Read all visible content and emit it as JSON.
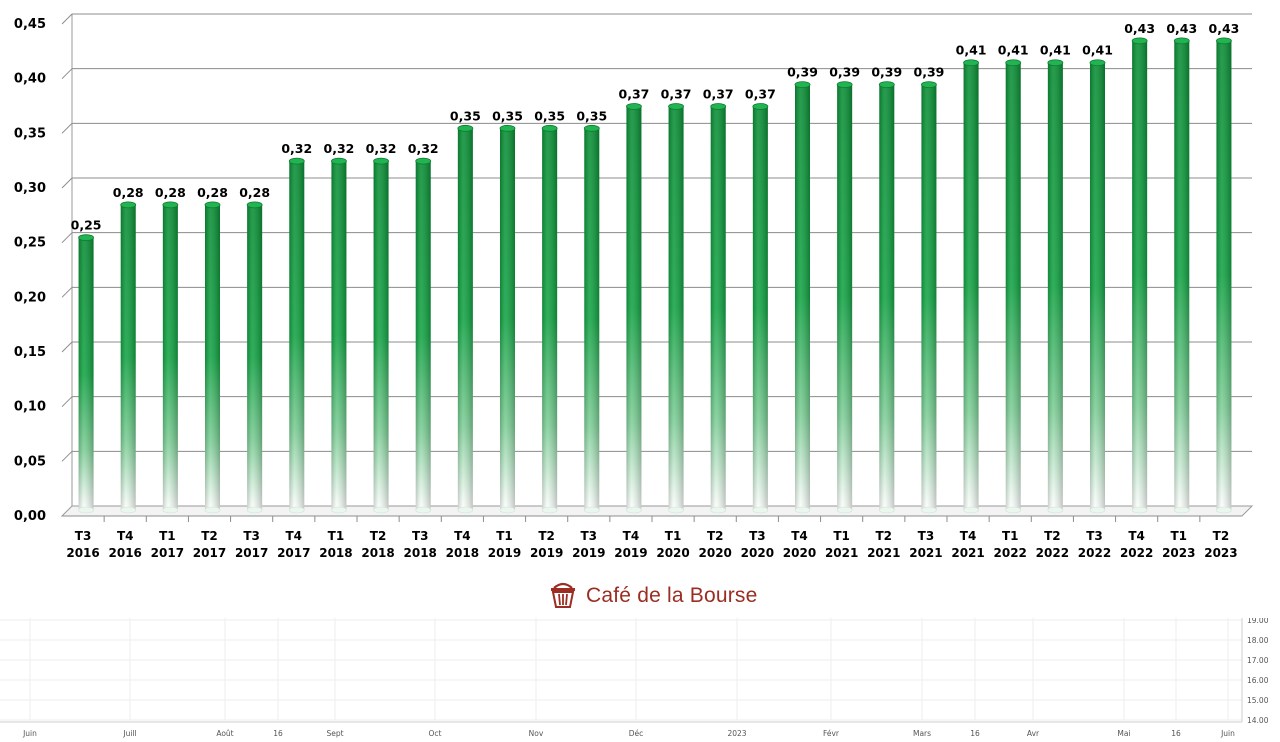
{
  "chart_data": {
    "type": "bar",
    "categories": [
      [
        "T3",
        "2016"
      ],
      [
        "T4",
        "2016"
      ],
      [
        "T1",
        "2017"
      ],
      [
        "T2",
        "2017"
      ],
      [
        "T3",
        "2017"
      ],
      [
        "T4",
        "2017"
      ],
      [
        "T1",
        "2018"
      ],
      [
        "T2",
        "2018"
      ],
      [
        "T3",
        "2018"
      ],
      [
        "T4",
        "2018"
      ],
      [
        "T1",
        "2019"
      ],
      [
        "T2",
        "2019"
      ],
      [
        "T3",
        "2019"
      ],
      [
        "T4",
        "2019"
      ],
      [
        "T1",
        "2020"
      ],
      [
        "T2",
        "2020"
      ],
      [
        "T3",
        "2020"
      ],
      [
        "T4",
        "2020"
      ],
      [
        "T1",
        "2021"
      ],
      [
        "T2",
        "2021"
      ],
      [
        "T3",
        "2021"
      ],
      [
        "T4",
        "2021"
      ],
      [
        "T1",
        "2022"
      ],
      [
        "T2",
        "2022"
      ],
      [
        "T3",
        "2022"
      ],
      [
        "T4",
        "2022"
      ],
      [
        "T1",
        "2023"
      ],
      [
        "T2",
        "2023"
      ]
    ],
    "values": [
      0.25,
      0.28,
      0.28,
      0.28,
      0.28,
      0.32,
      0.32,
      0.32,
      0.32,
      0.35,
      0.35,
      0.35,
      0.35,
      0.37,
      0.37,
      0.37,
      0.37,
      0.39,
      0.39,
      0.39,
      0.39,
      0.41,
      0.41,
      0.41,
      0.41,
      0.43,
      0.43,
      0.43
    ],
    "data_labels": [
      "0,25",
      "0,28",
      "0,28",
      "0,28",
      "0,28",
      "0,32",
      "0,32",
      "0,32",
      "0,32",
      "0,35",
      "0,35",
      "0,35",
      "0,35",
      "0,37",
      "0,37",
      "0,37",
      "0,37",
      "0,39",
      "0,39",
      "0,39",
      "0,39",
      "0,41",
      "0,41",
      "0,41",
      "0,41",
      "0,43",
      "0,43",
      "0,43"
    ],
    "yticks": [
      "0,00",
      "0,05",
      "0,10",
      "0,15",
      "0,20",
      "0,25",
      "0,30",
      "0,35",
      "0,40",
      "0,45"
    ],
    "ylim": [
      0,
      0.45
    ],
    "grid": true,
    "bar_color": "#0e9a3c"
  },
  "logo": {
    "text": "Café de la Bourse",
    "color": "#9b2d22",
    "icon": "basket-icon"
  },
  "mini_chart": {
    "x_labels": [
      "Juin",
      "Juill",
      "Août",
      "16",
      "Sept",
      "Oct",
      "Nov",
      "Déc",
      "2023",
      "Févr",
      "Mars",
      "16",
      "Avr",
      "Mai",
      "16",
      "Juin"
    ],
    "y_labels": [
      "19.00",
      "18.00",
      "17.00",
      "16.00",
      "15.00",
      "14.00"
    ]
  }
}
